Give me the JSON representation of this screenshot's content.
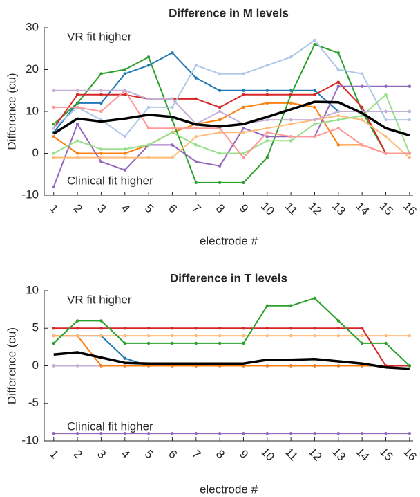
{
  "chart_data": [
    {
      "type": "line",
      "title": "Difference in M levels",
      "xlabel": "electrode #",
      "ylabel": "Difference (cu)",
      "annotations": [
        "VR fit higher",
        "Clinical fit higher"
      ],
      "x": [
        1,
        2,
        3,
        4,
        5,
        6,
        7,
        8,
        9,
        10,
        11,
        12,
        13,
        14,
        15,
        16
      ],
      "xlim": [
        0.6,
        16.15
      ],
      "xticks": [
        1,
        2,
        3,
        4,
        5,
        6,
        7,
        8,
        9,
        10,
        11,
        12,
        13,
        14,
        15,
        16
      ],
      "ylim": [
        -10,
        30
      ],
      "yticks": [
        -10,
        0,
        10,
        20,
        30
      ],
      "series": [
        {
          "color": "#1f77b4",
          "values": [
            5,
            12,
            12,
            19,
            21,
            24,
            18,
            15,
            15,
            15,
            15,
            15,
            10,
            10,
            10,
            10
          ]
        },
        {
          "color": "#ff7f0e",
          "values": [
            4,
            0,
            0,
            0,
            2,
            5,
            7,
            8,
            11,
            12,
            12,
            11,
            2,
            2,
            0,
            0
          ]
        },
        {
          "color": "#2ca02c",
          "values": [
            7,
            12,
            19,
            20,
            23,
            8,
            -7,
            -7,
            -7,
            -1,
            14,
            26,
            24,
            10,
            0,
            0
          ]
        },
        {
          "color": "#d62728",
          "values": [
            6,
            14,
            14,
            14,
            13,
            13,
            13,
            11,
            14,
            14,
            14,
            14,
            17,
            11,
            0,
            0
          ]
        },
        {
          "color": "#9467bd",
          "values": [
            -8,
            7,
            -2,
            -4,
            2,
            2,
            -2,
            -3,
            6,
            4,
            4,
            4,
            16,
            16,
            16,
            16
          ]
        },
        {
          "color": "#aec7e8",
          "values": [
            6,
            11,
            8,
            4,
            11,
            11,
            21,
            19,
            19,
            21,
            23,
            27,
            20,
            19,
            8,
            8
          ]
        },
        {
          "color": "#ffbb78",
          "values": [
            -1,
            -1,
            -1,
            -1,
            -1,
            -1,
            4,
            5,
            5,
            6,
            7,
            8,
            9,
            8,
            4,
            -1
          ]
        },
        {
          "color": "#98df8a",
          "values": [
            0,
            3,
            1,
            1,
            2,
            5,
            2,
            0,
            0,
            3,
            3,
            7,
            8,
            9,
            14,
            0
          ]
        },
        {
          "color": "#ff9896",
          "values": [
            11,
            11,
            10,
            15,
            6,
            6,
            6,
            6,
            -1,
            5,
            4,
            4,
            6,
            2,
            0,
            0
          ]
        },
        {
          "color": "#c5b0d5",
          "values": [
            15,
            15,
            15,
            15,
            13,
            13,
            7,
            10,
            7,
            8,
            8,
            8,
            10,
            10,
            10,
            10
          ]
        },
        {
          "color": "#000000",
          "line_width": 3.5,
          "markers": false,
          "values": [
            4.7,
            8.3,
            7.6,
            8.3,
            9.2,
            8.7,
            6.9,
            6.4,
            7.0,
            8.7,
            10.5,
            12.3,
            12.2,
            9.6,
            6.0,
            4.3
          ]
        }
      ]
    },
    {
      "type": "line",
      "title": "Difference in T levels",
      "xlabel": "electrode #",
      "ylabel": "Difference (cu)",
      "annotations": [
        "VR fit higher",
        "Clinical fit higher"
      ],
      "x": [
        1,
        2,
        3,
        4,
        5,
        6,
        7,
        8,
        9,
        10,
        11,
        12,
        13,
        14,
        15,
        16
      ],
      "xlim": [
        0.6,
        16.15
      ],
      "xticks": [
        1,
        2,
        3,
        4,
        5,
        6,
        7,
        8,
        9,
        10,
        11,
        12,
        13,
        14,
        15,
        16
      ],
      "ylim": [
        -10,
        10
      ],
      "yticks": [
        -10,
        -5,
        0,
        5,
        10
      ],
      "series": [
        {
          "color": "#aec7e8",
          "values": [
            0,
            0,
            0,
            0,
            0,
            0,
            0,
            0,
            0,
            0,
            0,
            0,
            0,
            0,
            0,
            0
          ]
        },
        {
          "color": "#98df8a",
          "values": [
            0,
            0,
            0,
            0,
            0,
            0,
            0,
            0,
            0,
            0,
            0,
            0,
            0,
            0,
            0,
            0
          ]
        },
        {
          "color": "#ff9896",
          "values": [
            0,
            0,
            0,
            0,
            0,
            0,
            0,
            0,
            0,
            0,
            0,
            0,
            0,
            0,
            0,
            0
          ]
        },
        {
          "color": "#c5b0d5",
          "values": [
            0,
            0,
            0,
            0,
            0,
            0,
            0,
            0,
            0,
            0,
            0,
            0,
            0,
            0,
            0,
            0
          ]
        },
        {
          "color": "#1f77b4",
          "values": [
            4,
            4,
            4,
            1,
            0,
            0,
            0,
            0,
            0,
            0,
            0,
            0,
            0,
            0,
            0,
            0
          ]
        },
        {
          "color": "#ff7f0e",
          "values": [
            4,
            4,
            0,
            0,
            0,
            0,
            0,
            0,
            0,
            0,
            0,
            0,
            0,
            0,
            0,
            0
          ]
        },
        {
          "color": "#ffbb78",
          "values": [
            4,
            4,
            4,
            4,
            4,
            4,
            4,
            4,
            4,
            4,
            4,
            4,
            4,
            4,
            4,
            4
          ]
        },
        {
          "color": "#d62728",
          "values": [
            5,
            5,
            5,
            5,
            5,
            5,
            5,
            5,
            5,
            5,
            5,
            5,
            5,
            5,
            0,
            0
          ]
        },
        {
          "color": "#2ca02c",
          "values": [
            3,
            6,
            6,
            3,
            3,
            3,
            3,
            3,
            3,
            8,
            8,
            9,
            6,
            3,
            3,
            0
          ]
        },
        {
          "color": "#9467bd",
          "values": [
            -9,
            -9,
            -9,
            -9,
            -9,
            -9,
            -9,
            -9,
            -9,
            -9,
            -9,
            -9,
            -9,
            -9,
            -9,
            -9
          ]
        },
        {
          "color": "#000000",
          "line_width": 3.5,
          "markers": false,
          "values": [
            1.5,
            1.8,
            1.1,
            0.4,
            0.3,
            0.3,
            0.3,
            0.3,
            0.3,
            0.8,
            0.8,
            0.9,
            0.6,
            0.3,
            -0.2,
            -0.4
          ]
        }
      ]
    }
  ]
}
